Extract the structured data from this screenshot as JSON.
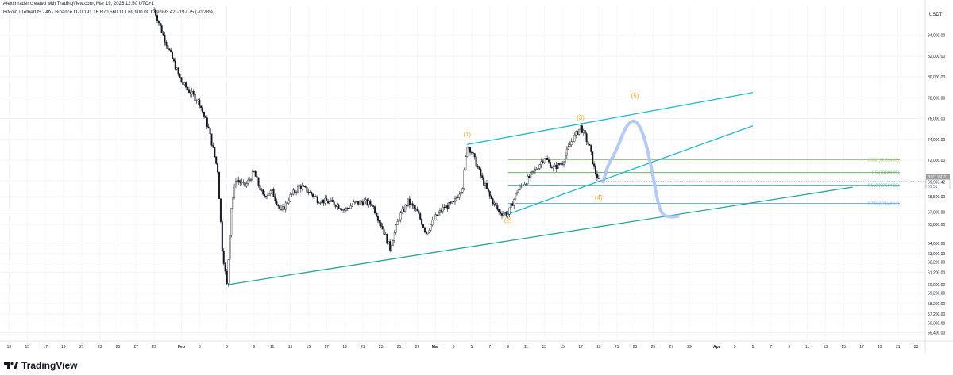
{
  "header": {
    "created_line": "Alexcrtrader created with TradingView.com, Mar 19, 2026 12:50 UTC+1",
    "symbol": "Bitcoin / TetherUS · 4h · Binance",
    "ohlc": "O70,191.16 H70,560.11 L69,900.00 C69,993.42 −197.75 (−0.28%)"
  },
  "branding": {
    "logo_text": "TradingView"
  },
  "colors": {
    "background": "#ffffff",
    "candle": "#131722",
    "trendline": "#1fb8cf",
    "support_line": "#26a69a",
    "wave_label": "#f5a623",
    "projection": "#a8c2f5",
    "fib_382": "#9ccc65",
    "fib_5": "#66bb6a",
    "fib_618": "#4db6ac",
    "fib_786": "#64b5f6",
    "price_tag": "#9e9e9e"
  },
  "chart_data": {
    "type": "candlestick",
    "timeframe": "4h",
    "title": "Bitcoin / TetherUS · 4h · Binance",
    "y_unit": "USDT",
    "ylim": [
      54600,
      86800
    ],
    "y_ticks": [
      84000,
      82000,
      80000,
      78000,
      76000,
      74000,
      72000,
      70000,
      68500,
      67000,
      65800,
      64000,
      63000,
      62200,
      61200,
      60000,
      59200,
      58200,
      57200,
      56300,
      55400
    ],
    "y_tick_labels": [
      "84,000.00",
      "82,000.00",
      "80,000.00",
      "78,000.00",
      "76,000.00",
      "74,000.00",
      "72,000.00",
      "70,000.00",
      "68,500.00",
      "67,000.00",
      "65,800.00",
      "64,000.00",
      "63,000.00",
      "62,200.00",
      "61,200.00",
      "60,000.00",
      "59,200.00",
      "58,200.00",
      "57,200.00",
      "56,300.00",
      "55,400.00"
    ],
    "x_range": [
      "2026-01-12",
      "2026-04-24"
    ],
    "x_tick_labels": [
      "13",
      "15",
      "17",
      "19",
      "21",
      "23",
      "25",
      "27",
      "29",
      "Feb",
      "3",
      "6",
      "9",
      "11",
      "13",
      "15",
      "17",
      "19",
      "21",
      "23",
      "25",
      "27",
      "Mar",
      "3",
      "5",
      "7",
      "9",
      "11",
      "13",
      "15",
      "17",
      "19",
      "21",
      "23",
      "25",
      "27",
      "29",
      "Apr",
      "3",
      "5",
      "7",
      "9",
      "11",
      "13",
      "15",
      "17",
      "19",
      "21",
      "23"
    ],
    "x_tick_dates": [
      "2026-01-13",
      "2026-01-15",
      "2026-01-17",
      "2026-01-19",
      "2026-01-21",
      "2026-01-23",
      "2026-01-25",
      "2026-01-27",
      "2026-01-29",
      "2026-02-01",
      "2026-02-03",
      "2026-02-06",
      "2026-02-09",
      "2026-02-11",
      "2026-02-13",
      "2026-02-15",
      "2026-02-17",
      "2026-02-19",
      "2026-02-21",
      "2026-02-23",
      "2026-02-25",
      "2026-02-27",
      "2026-03-01",
      "2026-03-03",
      "2026-03-05",
      "2026-03-07",
      "2026-03-09",
      "2026-03-11",
      "2026-03-13",
      "2026-03-15",
      "2026-03-17",
      "2026-03-19",
      "2026-03-21",
      "2026-03-23",
      "2026-03-25",
      "2026-03-27",
      "2026-03-29",
      "2026-04-01",
      "2026-04-03",
      "2026-04-05",
      "2026-04-07",
      "2026-04-09",
      "2026-04-11",
      "2026-04-13",
      "2026-04-15",
      "2026-04-17",
      "2026-04-19",
      "2026-04-21",
      "2026-04-23"
    ],
    "price_path": [
      {
        "t": "2026-01-29",
        "p": 86500
      },
      {
        "t": "2026-01-30",
        "p": 84000
      },
      {
        "t": "2026-02-01",
        "p": 79500
      },
      {
        "t": "2026-02-02",
        "p": 78500
      },
      {
        "t": "2026-02-03",
        "p": 77500
      },
      {
        "t": "2026-02-04",
        "p": 75000
      },
      {
        "t": "2026-02-05",
        "p": 71000
      },
      {
        "t": "2026-02-05T12:00",
        "p": 63500
      },
      {
        "t": "2026-02-06",
        "p": 60000
      },
      {
        "t": "2026-02-06T12:00",
        "p": 67500
      },
      {
        "t": "2026-02-07",
        "p": 70200
      },
      {
        "t": "2026-02-08",
        "p": 69500
      },
      {
        "t": "2026-02-09",
        "p": 70800
      },
      {
        "t": "2026-02-10",
        "p": 68500
      },
      {
        "t": "2026-02-11",
        "p": 69000
      },
      {
        "t": "2026-02-12",
        "p": 67000
      },
      {
        "t": "2026-02-13",
        "p": 68500
      },
      {
        "t": "2026-02-14",
        "p": 69500
      },
      {
        "t": "2026-02-15",
        "p": 69000
      },
      {
        "t": "2026-02-16",
        "p": 68200
      },
      {
        "t": "2026-02-17",
        "p": 68000
      },
      {
        "t": "2026-02-18",
        "p": 67800
      },
      {
        "t": "2026-02-19",
        "p": 67200
      },
      {
        "t": "2026-02-20",
        "p": 67800
      },
      {
        "t": "2026-02-21",
        "p": 68000
      },
      {
        "t": "2026-02-22",
        "p": 67800
      },
      {
        "t": "2026-02-23",
        "p": 65800
      },
      {
        "t": "2026-02-24",
        "p": 63500
      },
      {
        "t": "2026-02-25",
        "p": 66500
      },
      {
        "t": "2026-02-26",
        "p": 68000
      },
      {
        "t": "2026-02-27",
        "p": 67000
      },
      {
        "t": "2026-02-28",
        "p": 65000
      },
      {
        "t": "2026-03-01",
        "p": 66500
      },
      {
        "t": "2026-03-02",
        "p": 67500
      },
      {
        "t": "2026-03-03",
        "p": 67800
      },
      {
        "t": "2026-03-04",
        "p": 69500
      },
      {
        "t": "2026-03-04T12:00",
        "p": 73500
      },
      {
        "t": "2026-03-05",
        "p": 72800
      },
      {
        "t": "2026-03-06",
        "p": 70500
      },
      {
        "t": "2026-03-07",
        "p": 68500
      },
      {
        "t": "2026-03-08",
        "p": 67000
      },
      {
        "t": "2026-03-09",
        "p": 66800
      },
      {
        "t": "2026-03-10",
        "p": 69000
      },
      {
        "t": "2026-03-11",
        "p": 70000
      },
      {
        "t": "2026-03-12",
        "p": 71000
      },
      {
        "t": "2026-03-13",
        "p": 72300
      },
      {
        "t": "2026-03-14",
        "p": 71200
      },
      {
        "t": "2026-03-15",
        "p": 71800
      },
      {
        "t": "2026-03-16",
        "p": 73800
      },
      {
        "t": "2026-03-17",
        "p": 75200
      },
      {
        "t": "2026-03-17T12:00",
        "p": 74300
      },
      {
        "t": "2026-03-18",
        "p": 73200
      },
      {
        "t": "2026-03-18T12:00",
        "p": 71200
      },
      {
        "t": "2026-03-19",
        "p": 69993.42
      }
    ],
    "last_price": {
      "label": "BTCUSDT",
      "value": 69993.42,
      "value_text": "69,993.42",
      "countdown": "09:51"
    },
    "fib_levels": [
      {
        "ratio_label": "0.382 (72,034.36)",
        "price": 72034.36
      },
      {
        "ratio_label": "0.5 (70,809.25)",
        "price": 70809.25
      },
      {
        "ratio_label": "0.618 (69,584.23)",
        "price": 69584.23
      },
      {
        "ratio_label": "0.786 (67,840.13)",
        "price": 67840.13
      }
    ],
    "fib_start": "2026-03-09",
    "trendlines": [
      {
        "name": "channel-upper",
        "from": {
          "t": "2026-03-04T12:00",
          "p": 73500
        },
        "to": {
          "t": "2026-04-05",
          "p": 78500
        }
      },
      {
        "name": "channel-lower",
        "from": {
          "t": "2026-03-09",
          "p": 66800
        },
        "to": {
          "t": "2026-04-05",
          "p": 75300
        }
      },
      {
        "name": "major-support",
        "from": {
          "t": "2026-02-06",
          "p": 60000
        },
        "to": {
          "t": "2026-04-16",
          "p": 69400
        }
      }
    ],
    "wave_labels": [
      {
        "text": "(1)",
        "t": "2026-03-04T12:00",
        "p": 74300
      },
      {
        "text": "(2)",
        "t": "2026-03-09",
        "p": 66000
      },
      {
        "text": "(3)",
        "t": "2026-03-17",
        "p": 75900
      },
      {
        "text": "(4)",
        "t": "2026-03-19",
        "p": 68200
      },
      {
        "text": "(5)",
        "t": "2026-03-23",
        "p": 78000
      }
    ],
    "projection_path": [
      {
        "t": "2026-03-19T12:00",
        "p": 69900
      },
      {
        "t": "2026-03-20",
        "p": 71500
      },
      {
        "t": "2026-03-21",
        "p": 73000
      },
      {
        "t": "2026-03-22",
        "p": 75300
      },
      {
        "t": "2026-03-23",
        "p": 76000
      },
      {
        "t": "2026-03-24",
        "p": 74500
      },
      {
        "t": "2026-03-25",
        "p": 70500
      },
      {
        "t": "2026-03-25T12:00",
        "p": 68000
      },
      {
        "t": "2026-03-26",
        "p": 66700
      },
      {
        "t": "2026-03-27",
        "p": 66500
      },
      {
        "t": "2026-03-27T18:00",
        "p": 66600
      }
    ]
  }
}
